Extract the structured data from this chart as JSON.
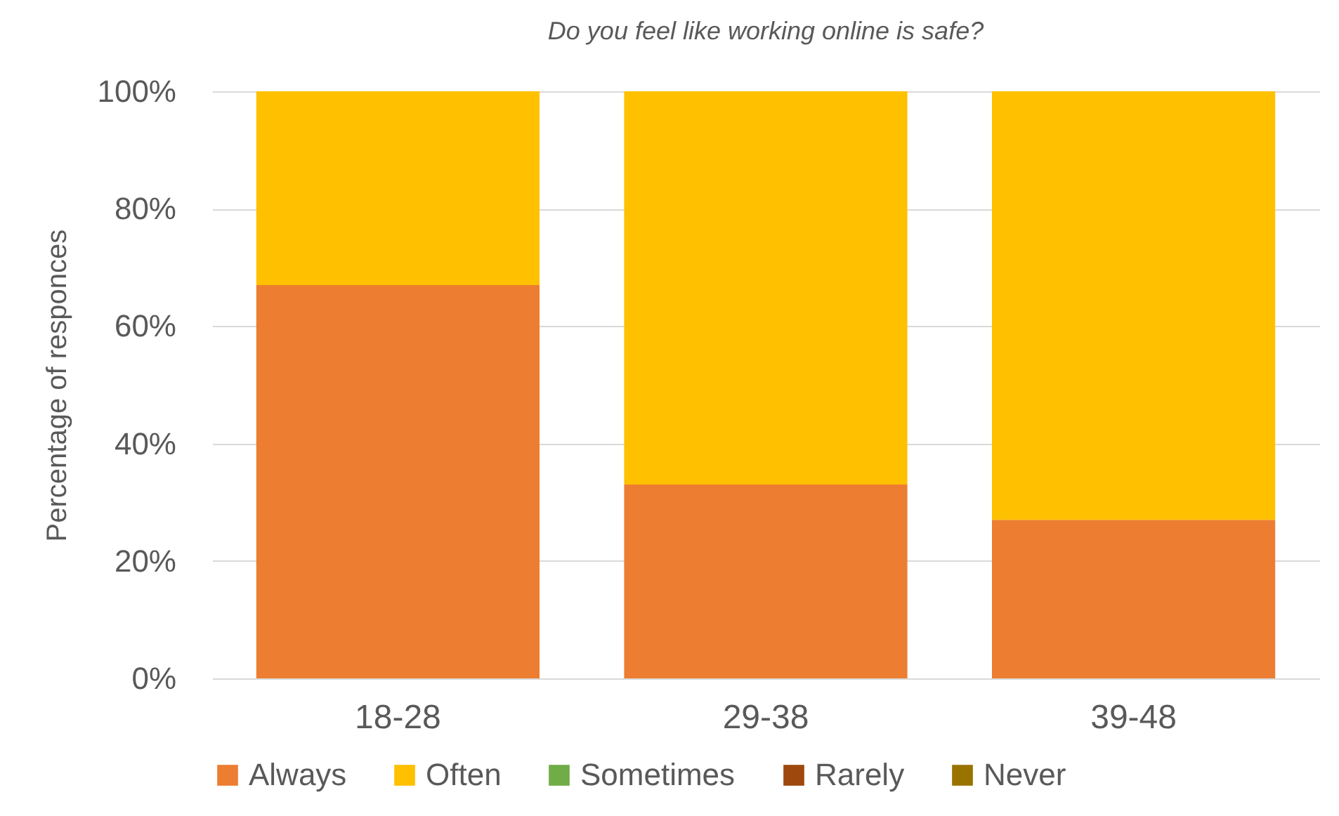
{
  "chart_data": {
    "type": "bar",
    "title": "Do you feel like working online is safe?",
    "ylabel": "Percentage of responces",
    "categories": [
      "18-28",
      "29-38",
      "39-48"
    ],
    "series": [
      {
        "name": "Always",
        "color": "#ed7d31",
        "values": [
          67,
          33,
          27
        ]
      },
      {
        "name": "Often",
        "color": "#ffc000",
        "values": [
          33,
          67,
          73
        ]
      },
      {
        "name": "Sometimes",
        "color": "#70ad47",
        "values": [
          0,
          0,
          0
        ]
      },
      {
        "name": "Rarely",
        "color": "#9e480e",
        "values": [
          0,
          0,
          0
        ]
      },
      {
        "name": "Never",
        "color": "#997300",
        "values": [
          0,
          0,
          0
        ]
      }
    ],
    "stacked": true,
    "ylim": [
      0,
      100
    ],
    "yticks": [
      {
        "value": 0,
        "label": "0%"
      },
      {
        "value": 20,
        "label": "20%"
      },
      {
        "value": 40,
        "label": "40%"
      },
      {
        "value": 60,
        "label": "60%"
      },
      {
        "value": 80,
        "label": "80%"
      },
      {
        "value": 100,
        "label": "100%"
      }
    ],
    "grid": "y",
    "legend": "bottom"
  }
}
